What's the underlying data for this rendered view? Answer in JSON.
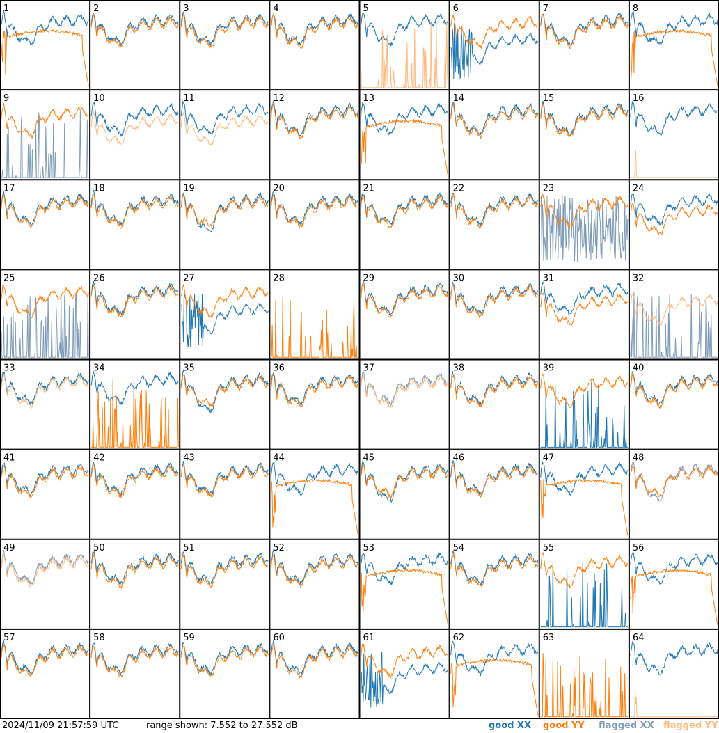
{
  "footer": {
    "timestamp": "2024/11/09 21:57:59 UTC",
    "range": "range shown: 7.552 to 27.552 dB"
  },
  "legend": {
    "good_xx": "good XX",
    "good_yy": "good YY",
    "flagged_xx": "flagged XX",
    "flagged_yy": "flagged YY"
  },
  "colors": {
    "good_xx": "#1f77b4",
    "good_yy": "#ff7f0e",
    "flagged_xx": "#7f9cb8",
    "flagged_yy": "#ffbb80"
  },
  "chart_data": {
    "type": "line",
    "title": "",
    "value_range_db": [
      7.552,
      27.552
    ],
    "grid": "8x8 small multiples",
    "panels": [
      {
        "id": "1",
        "xx": "good",
        "yy": "good",
        "yy_shape": "dropping"
      },
      {
        "id": "2",
        "xx": "good",
        "yy": "good",
        "yy_shape": "normal"
      },
      {
        "id": "3",
        "xx": "good",
        "yy": "good",
        "yy_shape": "normal"
      },
      {
        "id": "4",
        "xx": "good",
        "yy": "good",
        "yy_shape": "normal"
      },
      {
        "id": "5",
        "xx": "good",
        "yy": "flagged",
        "yy_shape": "spiky"
      },
      {
        "id": "6",
        "xx": "good",
        "yy": "good",
        "yy_shape": "normal",
        "xx_shape": "dip"
      },
      {
        "id": "7",
        "xx": "good",
        "yy": "good",
        "yy_shape": "normal"
      },
      {
        "id": "8",
        "xx": "good",
        "yy": "good",
        "yy_shape": "dropping"
      },
      {
        "id": "9",
        "xx": "flagged",
        "yy": "good",
        "xx_shape": "spiky"
      },
      {
        "id": "10",
        "xx": "good",
        "yy": "flagged",
        "yy_shape": "low"
      },
      {
        "id": "11",
        "xx": "good",
        "yy": "flagged",
        "yy_shape": "low"
      },
      {
        "id": "12",
        "xx": "good",
        "yy": "good",
        "yy_shape": "normal"
      },
      {
        "id": "13",
        "xx": "good",
        "yy": "good",
        "yy_shape": "dropping"
      },
      {
        "id": "14",
        "xx": "good",
        "yy": "good",
        "yy_shape": "normal"
      },
      {
        "id": "15",
        "xx": "good",
        "yy": "good",
        "yy_shape": "normal"
      },
      {
        "id": "16",
        "xx": "good",
        "yy": "flagged",
        "yy_shape": "flatbottom"
      },
      {
        "id": "17",
        "xx": "good",
        "yy": "good",
        "yy_shape": "normal"
      },
      {
        "id": "18",
        "xx": "good",
        "yy": "good",
        "yy_shape": "normal"
      },
      {
        "id": "19",
        "xx": "good",
        "yy": "good",
        "yy_shape": "normal",
        "xx_shape": "deep"
      },
      {
        "id": "20",
        "xx": "good",
        "yy": "good",
        "yy_shape": "normal"
      },
      {
        "id": "21",
        "xx": "good",
        "yy": "good",
        "yy_shape": "normal"
      },
      {
        "id": "22",
        "xx": "good",
        "yy": "good",
        "yy_shape": "normal"
      },
      {
        "id": "23",
        "xx": "flagged",
        "yy": "good",
        "xx_shape": "noisy"
      },
      {
        "id": "24",
        "xx": "good",
        "yy": "good",
        "yy_shape": "low"
      },
      {
        "id": "25",
        "xx": "flagged",
        "yy": "good",
        "xx_shape": "spiky"
      },
      {
        "id": "26",
        "xx": "good",
        "yy": "good",
        "yy_shape": "normal"
      },
      {
        "id": "27",
        "xx": "good",
        "yy": "good",
        "yy_shape": "normal",
        "xx_shape": "dip"
      },
      {
        "id": "28",
        "xx": "none",
        "yy": "good",
        "yy_shape": "spiky"
      },
      {
        "id": "29",
        "xx": "good",
        "yy": "good",
        "yy_shape": "normal"
      },
      {
        "id": "30",
        "xx": "good",
        "yy": "good",
        "yy_shape": "normal"
      },
      {
        "id": "31",
        "xx": "good",
        "yy": "good",
        "yy_shape": "low"
      },
      {
        "id": "32",
        "xx": "flagged",
        "yy": "flagged",
        "yy_shape": "low",
        "xx_shape": "spiky"
      },
      {
        "id": "33",
        "xx": "good",
        "yy": "flagged",
        "yy_shape": "normal"
      },
      {
        "id": "34",
        "xx": "good",
        "yy": "good",
        "yy_shape": "spiky"
      },
      {
        "id": "35",
        "xx": "good",
        "yy": "good",
        "yy_shape": "normal",
        "xx_shape": "deep"
      },
      {
        "id": "36",
        "xx": "good",
        "yy": "good",
        "yy_shape": "normal"
      },
      {
        "id": "37",
        "xx": "flagged",
        "yy": "flagged",
        "yy_shape": "normal"
      },
      {
        "id": "38",
        "xx": "good",
        "yy": "good",
        "yy_shape": "normal"
      },
      {
        "id": "39",
        "xx": "good",
        "yy": "good",
        "yy_shape": "normal",
        "xx_shape": "spiky"
      },
      {
        "id": "40",
        "xx": "good",
        "yy": "good",
        "yy_shape": "normal"
      },
      {
        "id": "41",
        "xx": "good",
        "yy": "good",
        "yy_shape": "normal"
      },
      {
        "id": "42",
        "xx": "good",
        "yy": "good",
        "yy_shape": "normal"
      },
      {
        "id": "43",
        "xx": "good",
        "yy": "good",
        "yy_shape": "normal"
      },
      {
        "id": "44",
        "xx": "good",
        "yy": "good",
        "yy_shape": "dropping"
      },
      {
        "id": "45",
        "xx": "good",
        "yy": "good",
        "yy_shape": "normal",
        "xx_shape": "deep"
      },
      {
        "id": "46",
        "xx": "good",
        "yy": "good",
        "yy_shape": "normal"
      },
      {
        "id": "47",
        "xx": "good",
        "yy": "good",
        "yy_shape": "dropping"
      },
      {
        "id": "48",
        "xx": "flagged",
        "yy": "good",
        "yy_shape": "normal",
        "xx_shape": "deep"
      },
      {
        "id": "49",
        "xx": "flagged",
        "yy": "flagged",
        "yy_shape": "normal"
      },
      {
        "id": "50",
        "xx": "good",
        "yy": "good",
        "yy_shape": "normal"
      },
      {
        "id": "51",
        "xx": "good",
        "yy": "good",
        "yy_shape": "normal"
      },
      {
        "id": "52",
        "xx": "good",
        "yy": "good",
        "yy_shape": "normal"
      },
      {
        "id": "53",
        "xx": "good",
        "yy": "good",
        "yy_shape": "dropping"
      },
      {
        "id": "54",
        "xx": "good",
        "yy": "good",
        "yy_shape": "normal"
      },
      {
        "id": "55",
        "xx": "good",
        "yy": "good",
        "yy_shape": "normal",
        "xx_shape": "spiky"
      },
      {
        "id": "56",
        "xx": "good",
        "yy": "good",
        "yy_shape": "dropping"
      },
      {
        "id": "57",
        "xx": "good",
        "yy": "good",
        "yy_shape": "normal"
      },
      {
        "id": "58",
        "xx": "good",
        "yy": "good",
        "yy_shape": "normal"
      },
      {
        "id": "59",
        "xx": "good",
        "yy": "good",
        "yy_shape": "normal"
      },
      {
        "id": "60",
        "xx": "good",
        "yy": "good",
        "yy_shape": "normal"
      },
      {
        "id": "61",
        "xx": "good",
        "yy": "good",
        "yy_shape": "normal",
        "xx_shape": "dip"
      },
      {
        "id": "62",
        "xx": "good",
        "yy": "good",
        "yy_shape": "dropping"
      },
      {
        "id": "63",
        "xx": "none",
        "yy": "good",
        "yy_shape": "spiky"
      },
      {
        "id": "64",
        "xx": "good",
        "yy": "flagged",
        "yy_shape": "flatbottom"
      }
    ]
  }
}
